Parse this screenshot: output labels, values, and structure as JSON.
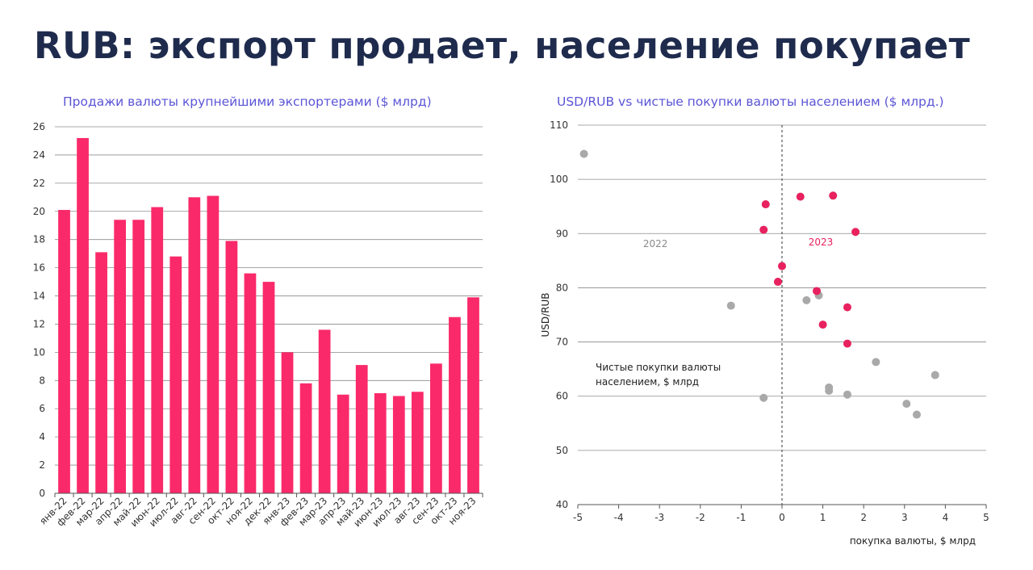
{
  "page": {
    "title": "RUB: экспорт продает, население покупает"
  },
  "colors": {
    "bar": "#fa2a6a",
    "scatter_2022": "#a9a9a9",
    "scatter_2023": "#e8215f",
    "title": "#1f2b4d",
    "chart_title": "#5b55d6",
    "grid": "#8c8c8c"
  },
  "chart_data": [
    {
      "type": "bar",
      "title": "Продажи валюты крупнейшими экспортерами ($ млрд)",
      "xlabel": "",
      "ylabel": "",
      "ylim": [
        0,
        26
      ],
      "yticks": [
        0,
        2,
        4,
        6,
        8,
        10,
        12,
        14,
        16,
        18,
        20,
        22,
        24,
        26
      ],
      "grid": true,
      "categories": [
        "янв-22",
        "фев-22",
        "мар-22",
        "апр-22",
        "май-22",
        "июн-22",
        "июл-22",
        "авг-22",
        "сен-22",
        "окт-22",
        "ноя-22",
        "дек-22",
        "янв-23",
        "фев-23",
        "мар-23",
        "апр-23",
        "май-23",
        "июн-23",
        "июл-23",
        "авг-23",
        "сен-23",
        "окт-23",
        "ноя-23"
      ],
      "values": [
        20.1,
        25.2,
        17.1,
        19.4,
        19.4,
        20.3,
        16.8,
        21.0,
        21.1,
        17.9,
        15.6,
        15.0,
        10.0,
        7.8,
        11.6,
        7.0,
        9.1,
        7.1,
        6.9,
        7.2,
        9.2,
        12.5,
        13.9
      ]
    },
    {
      "type": "scatter",
      "title": "USD/RUB vs чистые покупки валюты населением ($ млрд.)",
      "xlabel": "покупка валюты, $ млрд",
      "ylabel": "USD/RUB",
      "xlim": [
        -5,
        5
      ],
      "ylim": [
        40,
        110
      ],
      "xticks": [
        -5,
        -4,
        -3,
        -2,
        -1,
        0,
        1,
        2,
        3,
        4,
        5
      ],
      "yticks": [
        40,
        50,
        60,
        70,
        80,
        90,
        100,
        110
      ],
      "grid": true,
      "annotations": {
        "label_2022": "2022",
        "label_2023": "2023",
        "note_line1": "Чистые покупки валюты",
        "note_line2": "населением, $ млрд"
      },
      "series": [
        {
          "name": "2022",
          "points": [
            [
              -4.85,
              104.7
            ],
            [
              -1.25,
              76.7
            ],
            [
              -0.45,
              59.7
            ],
            [
              0.6,
              77.7
            ],
            [
              0.9,
              78.6
            ],
            [
              1.15,
              61.6
            ],
            [
              1.15,
              61.0
            ],
            [
              1.6,
              60.3
            ],
            [
              2.3,
              66.3
            ],
            [
              3.05,
              58.6
            ],
            [
              3.3,
              56.6
            ],
            [
              3.75,
              63.9
            ]
          ]
        },
        {
          "name": "2023",
          "points": [
            [
              -0.4,
              95.4
            ],
            [
              -0.45,
              90.7
            ],
            [
              0.45,
              96.8
            ],
            [
              1.25,
              97.0
            ],
            [
              1.8,
              90.3
            ],
            [
              0.0,
              84.0
            ],
            [
              -0.1,
              81.1
            ],
            [
              0.85,
              79.4
            ],
            [
              1.0,
              73.2
            ],
            [
              1.6,
              76.4
            ],
            [
              1.6,
              69.7
            ]
          ]
        }
      ]
    }
  ]
}
